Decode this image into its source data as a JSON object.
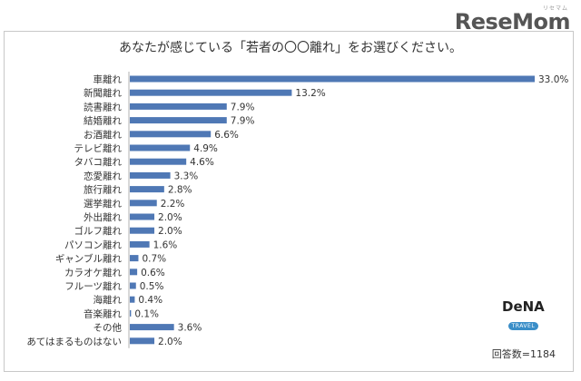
{
  "brand": {
    "name": "ReseMom",
    "kana": "リセマム"
  },
  "logo": {
    "name": "DeNA",
    "sub": "TRAVEL"
  },
  "footer": {
    "respondents": "回答数=1184"
  },
  "chart_data": {
    "type": "bar",
    "orientation": "horizontal",
    "title": "あなたが感じている「若者の〇〇離れ」をお選びください。",
    "categories": [
      "車離れ",
      "新聞離れ",
      "読書離れ",
      "結婚離れ",
      "お酒離れ",
      "テレビ離れ",
      "タバコ離れ",
      "恋愛離れ",
      "旅行離れ",
      "選挙離れ",
      "外出離れ",
      "ゴルフ離れ",
      "パソコン離れ",
      "ギャンブル離れ",
      "カラオケ離れ",
      "フルーツ離れ",
      "海離れ",
      "音楽離れ",
      "その他",
      "あてはまるものはない"
    ],
    "values": [
      33.0,
      13.2,
      7.9,
      7.9,
      6.6,
      4.9,
      4.6,
      3.3,
      2.8,
      2.2,
      2.0,
      2.0,
      1.6,
      0.7,
      0.6,
      0.5,
      0.4,
      0.1,
      3.6,
      2.0
    ],
    "value_labels": [
      "33.0%",
      "13.2%",
      "7.9%",
      "7.9%",
      "6.6%",
      "4.9%",
      "4.6%",
      "3.3%",
      "2.8%",
      "2.2%",
      "2.0%",
      "2.0%",
      "1.6%",
      "0.7%",
      "0.6%",
      "0.5%",
      "0.4%",
      "0.1%",
      "3.6%",
      "2.0%"
    ],
    "xlim": [
      0,
      33
    ],
    "bar_color": "#4f78b5",
    "grid": false
  }
}
